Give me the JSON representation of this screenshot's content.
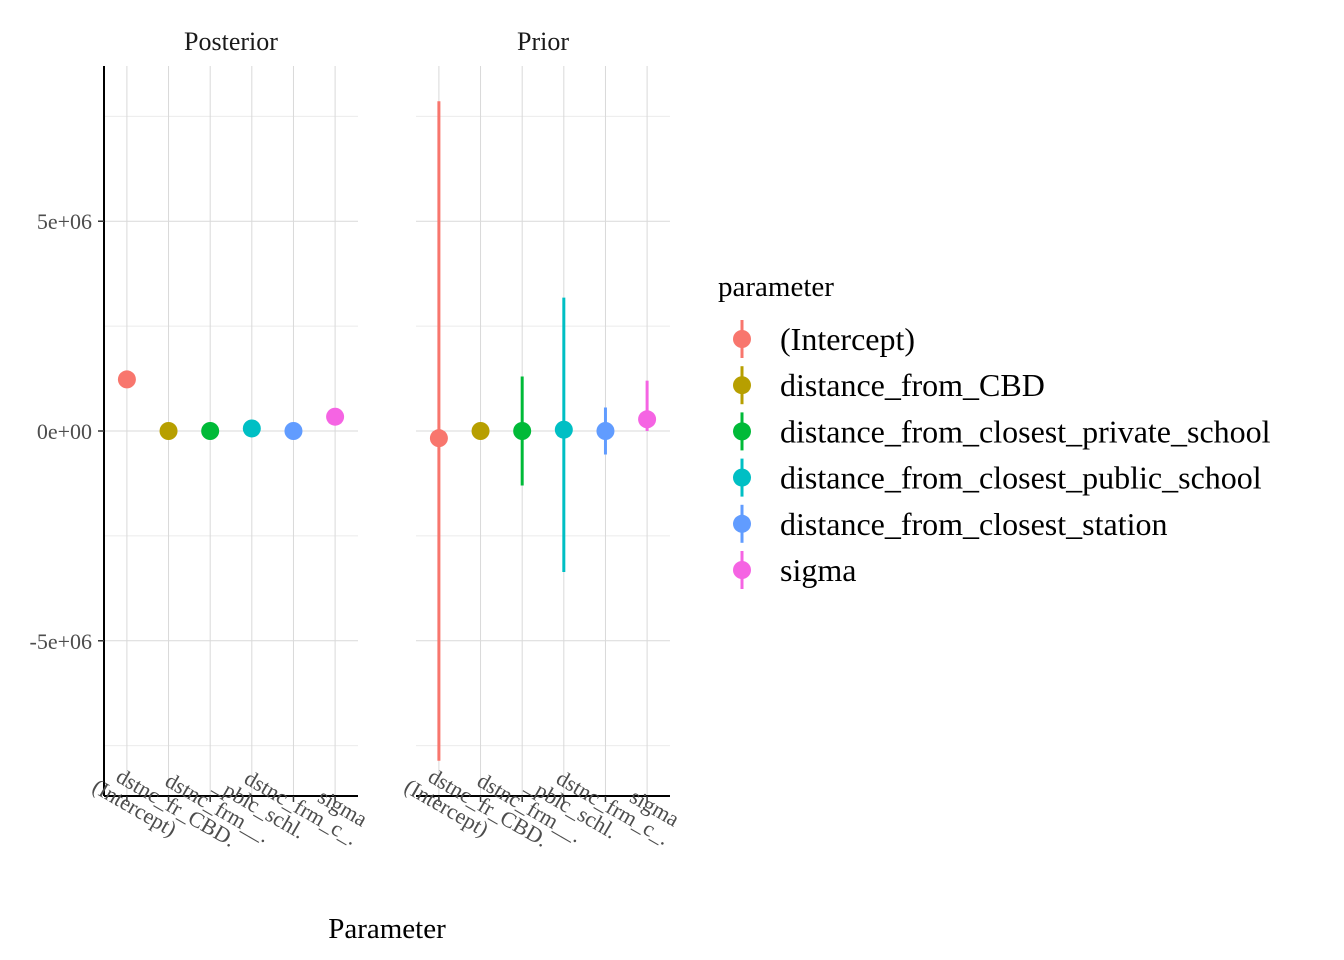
{
  "chart_data": {
    "type": "scatter",
    "xlabel": "Parameter",
    "ylabel": "",
    "categories": [
      "(Intercept)",
      "dstnc_fr_CBD.",
      "dstnc_frm__.",
      "_pblc_schl.",
      "dstnc_frm_c_.",
      "sigma"
    ],
    "ylim": [
      -8700000,
      8700000
    ],
    "yticks": [
      -5000000,
      0,
      5000000
    ],
    "ytick_labels": [
      "-5e+06",
      "0e+00",
      "5e+06"
    ],
    "grid": true,
    "legend": {
      "title": "parameter",
      "position": "right",
      "entries": [
        {
          "label": "(Intercept)",
          "color": "#F8766D"
        },
        {
          "label": "distance_from_CBD",
          "color": "#B79F00"
        },
        {
          "label": "distance_from_closest_private_school",
          "color": "#00BA38"
        },
        {
          "label": "distance_from_closest_public_school",
          "color": "#00BFC4"
        },
        {
          "label": "distance_from_closest_station",
          "color": "#619CFF"
        },
        {
          "label": "sigma",
          "color": "#F564E3"
        }
      ]
    },
    "panels": [
      {
        "title": "Posterior",
        "estimates": [
          1230000,
          0,
          0,
          60000,
          0,
          340000
        ],
        "lower": [
          1230000,
          0,
          0,
          60000,
          0,
          340000
        ],
        "upper": [
          1230000,
          0,
          0,
          60000,
          0,
          340000
        ]
      },
      {
        "title": "Prior",
        "estimates": [
          -170000,
          0,
          0,
          30000,
          0,
          280000
        ],
        "lower": [
          -7860000,
          0,
          -1300000,
          -3360000,
          -560000,
          0
        ],
        "upper": [
          7860000,
          0,
          1300000,
          3180000,
          560000,
          1200000
        ]
      }
    ]
  }
}
